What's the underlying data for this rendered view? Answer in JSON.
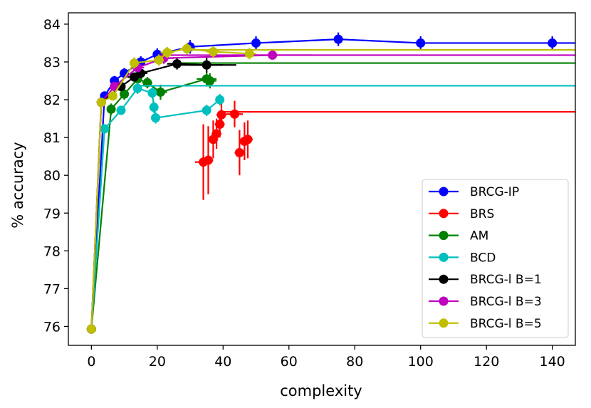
{
  "chart_data": {
    "type": "scatter",
    "title": "",
    "xlabel": "complexity",
    "ylabel": "% accuracy",
    "xlim": [
      -7,
      147
    ],
    "ylim": [
      75.5,
      84.3
    ],
    "xticks": [
      0,
      20,
      40,
      60,
      80,
      100,
      120,
      140
    ],
    "yticks": [
      76,
      77,
      78,
      79,
      80,
      81,
      82,
      83,
      84
    ],
    "grid": false,
    "legend_position": "lower-right",
    "series": [
      {
        "name": "BRCG-IP",
        "color": "#0000ff",
        "connected": true,
        "points": [
          {
            "x": 0,
            "y": 75.93,
            "xerr": 0,
            "yerr": 0
          },
          {
            "x": 4,
            "y": 82.1,
            "xerr": 0,
            "yerr": 0.12
          },
          {
            "x": 7,
            "y": 82.5,
            "xerr": 0,
            "yerr": 0.13
          },
          {
            "x": 10,
            "y": 82.7,
            "xerr": 0,
            "yerr": 0.14
          },
          {
            "x": 15,
            "y": 83.0,
            "xerr": 0,
            "yerr": 0.15
          },
          {
            "x": 20,
            "y": 83.2,
            "xerr": 0,
            "yerr": 0.16
          },
          {
            "x": 30,
            "y": 83.4,
            "xerr": 0,
            "yerr": 0.18
          },
          {
            "x": 50,
            "y": 83.5,
            "xerr": 0,
            "yerr": 0.18
          },
          {
            "x": 75,
            "y": 83.6,
            "xerr": 0,
            "yerr": 0.18
          },
          {
            "x": 100,
            "y": 83.5,
            "xerr": 0,
            "yerr": 0.18
          },
          {
            "x": 140,
            "y": 83.5,
            "xerr": 0,
            "yerr": 0.18
          }
        ],
        "extend_to": 147
      },
      {
        "name": "BRS",
        "color": "#ff0000",
        "connected": false,
        "points": [
          {
            "x": 34,
            "y": 80.35,
            "xerr": 2.5,
            "yerr": 1.0
          },
          {
            "x": 35.5,
            "y": 80.4,
            "xerr": 1.5,
            "yerr": 0.9
          },
          {
            "x": 37,
            "y": 80.95,
            "xerr": 1.5,
            "yerr": 0.5
          },
          {
            "x": 38,
            "y": 81.1,
            "xerr": 1.5,
            "yerr": 0.4
          },
          {
            "x": 39,
            "y": 81.35,
            "xerr": 1.5,
            "yerr": 0.35
          },
          {
            "x": 39.5,
            "y": 81.6,
            "xerr": 1.5,
            "yerr": 0.3
          },
          {
            "x": 43.5,
            "y": 81.62,
            "xerr": 2.5,
            "yerr": 0.35
          },
          {
            "x": 45,
            "y": 80.6,
            "xerr": 1.5,
            "yerr": 0.6
          },
          {
            "x": 46.5,
            "y": 80.9,
            "xerr": 1.5,
            "yerr": 0.5
          },
          {
            "x": 47.5,
            "y": 80.95,
            "xerr": 1.5,
            "yerr": 0.5
          }
        ],
        "hline": {
          "y": 81.68,
          "from": 40,
          "to": 147
        }
      },
      {
        "name": "AM",
        "color": "#008000",
        "connected": true,
        "points": [
          {
            "x": 0,
            "y": 75.93,
            "xerr": 0,
            "yerr": 0
          },
          {
            "x": 6,
            "y": 81.75,
            "xerr": 0.8,
            "yerr": 0.15
          },
          {
            "x": 10,
            "y": 82.15,
            "xerr": 1.2,
            "yerr": 0.15
          },
          {
            "x": 14,
            "y": 82.55,
            "xerr": 1.2,
            "yerr": 0.15
          },
          {
            "x": 17,
            "y": 82.45,
            "xerr": 1.5,
            "yerr": 0.15
          },
          {
            "x": 21,
            "y": 82.2,
            "xerr": 2,
            "yerr": 0.2
          },
          {
            "x": 35,
            "y": 82.55,
            "xerr": 3,
            "yerr": 0.2
          },
          {
            "x": 36,
            "y": 82.5,
            "xerr": 2,
            "yerr": 0.2
          }
        ],
        "hline": {
          "y": 82.97,
          "from": 27,
          "to": 147
        }
      },
      {
        "name": "BCD",
        "color": "#00bfbf",
        "connected": true,
        "points": [
          {
            "x": 0,
            "y": 75.93,
            "xerr": 0,
            "yerr": 0
          },
          {
            "x": 4,
            "y": 81.23,
            "xerr": 0.5,
            "yerr": 0.12
          },
          {
            "x": 9,
            "y": 81.72,
            "xerr": 0.8,
            "yerr": 0.12
          },
          {
            "x": 14,
            "y": 82.3,
            "xerr": 1,
            "yerr": 0.15
          },
          {
            "x": 18.5,
            "y": 82.18,
            "xerr": 1,
            "yerr": 0.15
          },
          {
            "x": 19,
            "y": 81.8,
            "xerr": 0.8,
            "yerr": 0.15
          },
          {
            "x": 19.5,
            "y": 81.52,
            "xerr": 0.8,
            "yerr": 0.15
          },
          {
            "x": 35,
            "y": 81.72,
            "xerr": 1,
            "yerr": 0.15
          },
          {
            "x": 39,
            "y": 82.0,
            "xerr": 1,
            "yerr": 0.15
          }
        ],
        "hline": {
          "y": 82.37,
          "from": 14,
          "to": 147
        }
      },
      {
        "name": "BRCG-l B=1",
        "color": "#000000",
        "connected": true,
        "points": [
          {
            "x": 0,
            "y": 75.93,
            "xerr": 0,
            "yerr": 0
          },
          {
            "x": 3,
            "y": 81.93,
            "xerr": 0.5,
            "yerr": 0.1
          },
          {
            "x": 9,
            "y": 82.35,
            "xerr": 1,
            "yerr": 0.12
          },
          {
            "x": 13,
            "y": 82.6,
            "xerr": 2,
            "yerr": 0.12
          },
          {
            "x": 15,
            "y": 82.7,
            "xerr": 2,
            "yerr": 0.12
          },
          {
            "x": 26,
            "y": 82.95,
            "xerr": 3,
            "yerr": 0.15
          },
          {
            "x": 35,
            "y": 82.92,
            "xerr": 5,
            "yerr": 0.2
          }
        ],
        "hline": {
          "y": 82.92,
          "from": 26,
          "to": 44
        }
      },
      {
        "name": "BRCG-l B=3",
        "color": "#bf00bf",
        "connected": true,
        "points": [
          {
            "x": 0,
            "y": 75.93,
            "xerr": 0,
            "yerr": 0
          },
          {
            "x": 3,
            "y": 81.93,
            "xerr": 0.5,
            "yerr": 0.1
          },
          {
            "x": 7,
            "y": 82.35,
            "xerr": 1,
            "yerr": 0.12
          },
          {
            "x": 14,
            "y": 82.85,
            "xerr": 2,
            "yerr": 0.12
          },
          {
            "x": 22,
            "y": 83.1,
            "xerr": 3,
            "yerr": 0.15
          },
          {
            "x": 55,
            "y": 83.18,
            "xerr": 12,
            "yerr": 0.08
          }
        ],
        "hline": {
          "y": 83.18,
          "from": 22,
          "to": 147
        }
      },
      {
        "name": "BRCG-l B=5",
        "color": "#bfbf00",
        "connected": true,
        "points": [
          {
            "x": 0,
            "y": 75.93,
            "xerr": 0,
            "yerr": 0
          },
          {
            "x": 3,
            "y": 81.93,
            "xerr": 0.5,
            "yerr": 0.1
          },
          {
            "x": 6.5,
            "y": 82.1,
            "xerr": 0.8,
            "yerr": 0.12
          },
          {
            "x": 13,
            "y": 82.97,
            "xerr": 1,
            "yerr": 0.15
          },
          {
            "x": 20.5,
            "y": 83.05,
            "xerr": 1.5,
            "yerr": 0.15
          },
          {
            "x": 23,
            "y": 83.25,
            "xerr": 2,
            "yerr": 0.15
          },
          {
            "x": 29,
            "y": 83.35,
            "xerr": 2,
            "yerr": 0.15
          },
          {
            "x": 37,
            "y": 83.27,
            "xerr": 2,
            "yerr": 0.15
          },
          {
            "x": 48,
            "y": 83.22,
            "xerr": 2,
            "yerr": 0.15
          }
        ],
        "hline": {
          "y": 83.32,
          "from": 29,
          "to": 147
        }
      }
    ]
  }
}
